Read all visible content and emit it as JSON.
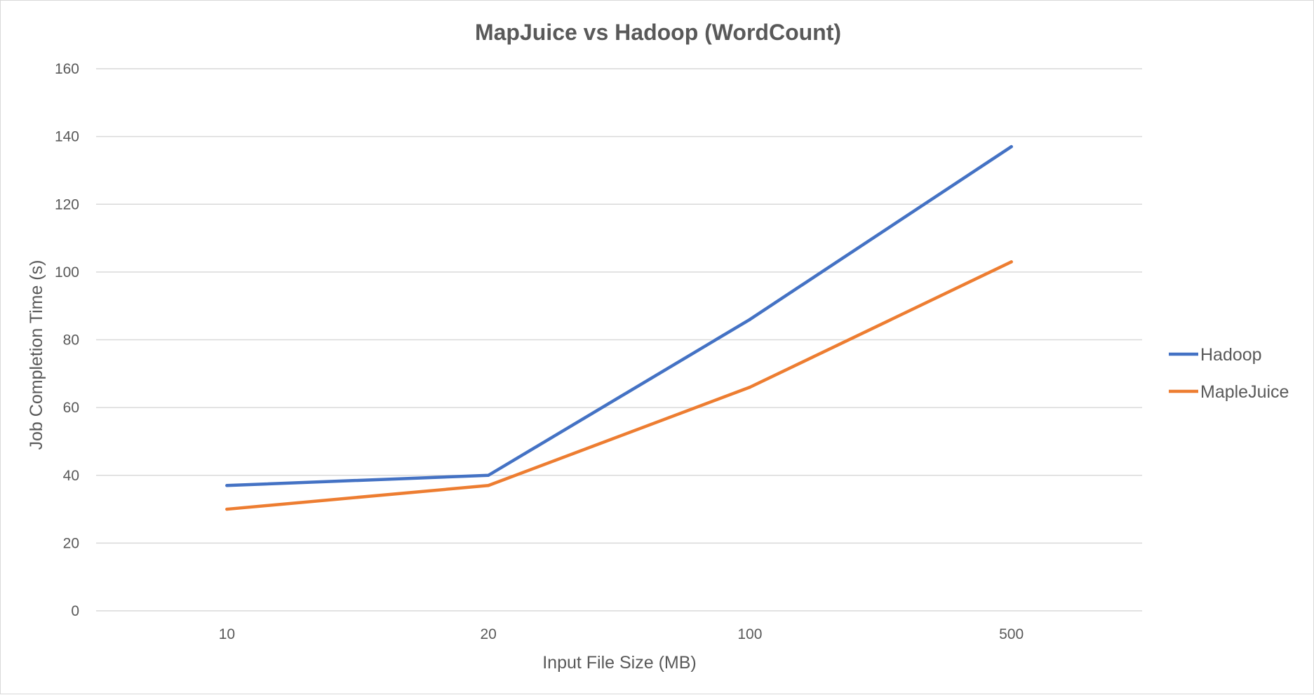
{
  "chart_data": {
    "type": "line",
    "title": "MapJuice vs Hadoop (WordCount)",
    "xlabel": "Input File Size (MB)",
    "ylabel": "Job Completion Time (s)",
    "categories": [
      "10",
      "20",
      "100",
      "500"
    ],
    "series": [
      {
        "name": "Hadoop",
        "color": "#4472c4",
        "values": [
          37,
          40,
          86,
          137
        ]
      },
      {
        "name": "MapleJuice",
        "color": "#ed7d31",
        "values": [
          30,
          37,
          66,
          103
        ]
      }
    ],
    "ylim": [
      0,
      160
    ],
    "yticks": [
      0,
      20,
      40,
      60,
      80,
      100,
      120,
      140,
      160
    ],
    "grid": true,
    "legend": "right"
  }
}
